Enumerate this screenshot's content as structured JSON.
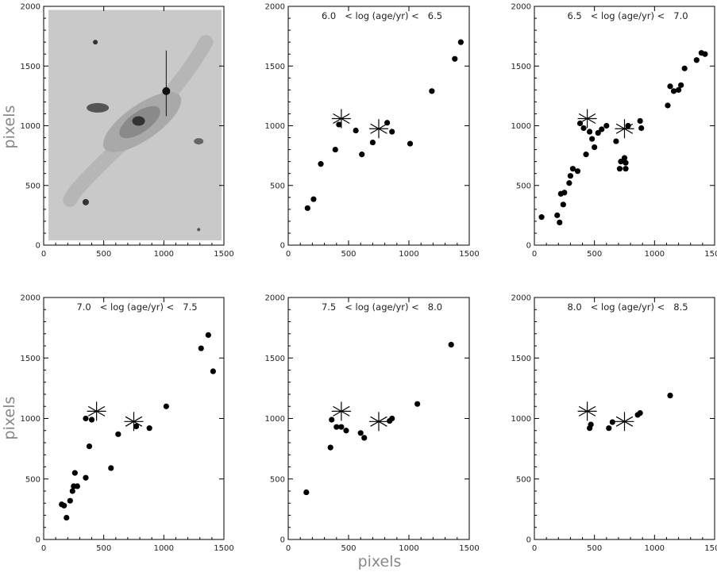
{
  "figure": {
    "ylabel": "pixels",
    "xlabel": "pixels"
  },
  "chart_data": [
    {
      "type": "image",
      "title": "",
      "xlim": [
        0,
        1500
      ],
      "ylim": [
        0,
        2000
      ],
      "xticks": [
        0,
        500,
        1000,
        1500
      ],
      "yticks": [
        0,
        500,
        1000,
        1500,
        2000
      ],
      "ylabel": "pixels"
    },
    {
      "type": "scatter",
      "title": "6.0   < log (age/yr) <   6.5",
      "xlim": [
        0,
        1500
      ],
      "ylim": [
        0,
        2000
      ],
      "xticks": [
        0,
        500,
        1000,
        1500
      ],
      "yticks": [
        0,
        500,
        1000,
        1500,
        2000
      ],
      "reference_stars": [
        [
          440,
          1060
        ],
        [
          750,
          975
        ]
      ],
      "points": [
        [
          160,
          310
        ],
        [
          210,
          385
        ],
        [
          270,
          680
        ],
        [
          390,
          800
        ],
        [
          420,
          1010
        ],
        [
          560,
          960
        ],
        [
          610,
          760
        ],
        [
          700,
          860
        ],
        [
          820,
          1025
        ],
        [
          860,
          950
        ],
        [
          1010,
          850
        ],
        [
          1190,
          1290
        ],
        [
          1380,
          1560
        ],
        [
          1430,
          1700
        ]
      ]
    },
    {
      "type": "scatter",
      "title": "6.5   < log (age/yr) <   7.0",
      "xlim": [
        0,
        1500
      ],
      "ylim": [
        0,
        2000
      ],
      "xticks": [
        0,
        500,
        1000,
        1500
      ],
      "yticks": [
        0,
        500,
        1000,
        1500,
        2000
      ],
      "reference_stars": [
        [
          440,
          1060
        ],
        [
          750,
          975
        ]
      ],
      "points": [
        [
          60,
          235
        ],
        [
          190,
          250
        ],
        [
          210,
          190
        ],
        [
          220,
          430
        ],
        [
          250,
          440
        ],
        [
          240,
          340
        ],
        [
          290,
          520
        ],
        [
          300,
          580
        ],
        [
          320,
          640
        ],
        [
          360,
          620
        ],
        [
          380,
          1020
        ],
        [
          410,
          980
        ],
        [
          430,
          760
        ],
        [
          460,
          950
        ],
        [
          480,
          890
        ],
        [
          500,
          820
        ],
        [
          530,
          940
        ],
        [
          560,
          970
        ],
        [
          600,
          1000
        ],
        [
          680,
          870
        ],
        [
          710,
          640
        ],
        [
          720,
          700
        ],
        [
          750,
          730
        ],
        [
          760,
          690
        ],
        [
          760,
          640
        ],
        [
          780,
          1000
        ],
        [
          880,
          1040
        ],
        [
          890,
          980
        ],
        [
          1110,
          1170
        ],
        [
          1130,
          1330
        ],
        [
          1160,
          1290
        ],
        [
          1200,
          1300
        ],
        [
          1220,
          1340
        ],
        [
          1250,
          1480
        ],
        [
          1350,
          1550
        ],
        [
          1390,
          1610
        ],
        [
          1420,
          1600
        ]
      ]
    },
    {
      "type": "scatter",
      "title": "7.0   < log (age/yr) <   7.5",
      "xlim": [
        0,
        1500
      ],
      "ylim": [
        0,
        2000
      ],
      "xticks": [
        0,
        500,
        1000,
        1500
      ],
      "yticks": [
        0,
        500,
        1000,
        1500,
        2000
      ],
      "ylabel": "pixels",
      "reference_stars": [
        [
          440,
          1060
        ],
        [
          750,
          975
        ]
      ],
      "points": [
        [
          150,
          290
        ],
        [
          170,
          280
        ],
        [
          190,
          180
        ],
        [
          220,
          320
        ],
        [
          240,
          400
        ],
        [
          250,
          440
        ],
        [
          260,
          550
        ],
        [
          280,
          440
        ],
        [
          350,
          510
        ],
        [
          350,
          1000
        ],
        [
          380,
          770
        ],
        [
          400,
          990
        ],
        [
          560,
          590
        ],
        [
          620,
          870
        ],
        [
          770,
          935
        ],
        [
          880,
          920
        ],
        [
          1020,
          1100
        ],
        [
          1310,
          1580
        ],
        [
          1370,
          1690
        ],
        [
          1410,
          1390
        ]
      ]
    },
    {
      "type": "scatter",
      "title": "7.5   < log (age/yr) <   8.0",
      "xlim": [
        0,
        1500
      ],
      "ylim": [
        0,
        2000
      ],
      "xticks": [
        0,
        500,
        1000,
        1500
      ],
      "yticks": [
        0,
        500,
        1000,
        1500,
        2000
      ],
      "xlabel": "pixels",
      "reference_stars": [
        [
          440,
          1060
        ],
        [
          750,
          975
        ]
      ],
      "points": [
        [
          150,
          390
        ],
        [
          350,
          760
        ],
        [
          360,
          990
        ],
        [
          400,
          930
        ],
        [
          440,
          930
        ],
        [
          480,
          900
        ],
        [
          600,
          880
        ],
        [
          630,
          840
        ],
        [
          840,
          980
        ],
        [
          860,
          1000
        ],
        [
          1070,
          1120
        ],
        [
          1350,
          1610
        ]
      ]
    },
    {
      "type": "scatter",
      "title": "8.0   < log (age/yr) <   8.5",
      "xlim": [
        0,
        1500
      ],
      "ylim": [
        0,
        2000
      ],
      "xticks": [
        0,
        500,
        1000,
        1500
      ],
      "yticks": [
        0,
        500,
        1000,
        1500,
        2000
      ],
      "reference_stars": [
        [
          440,
          1060
        ],
        [
          750,
          975
        ]
      ],
      "points": [
        [
          460,
          920
        ],
        [
          470,
          950
        ],
        [
          620,
          920
        ],
        [
          650,
          970
        ],
        [
          860,
          1030
        ],
        [
          880,
          1045
        ],
        [
          1130,
          1190
        ]
      ]
    }
  ]
}
